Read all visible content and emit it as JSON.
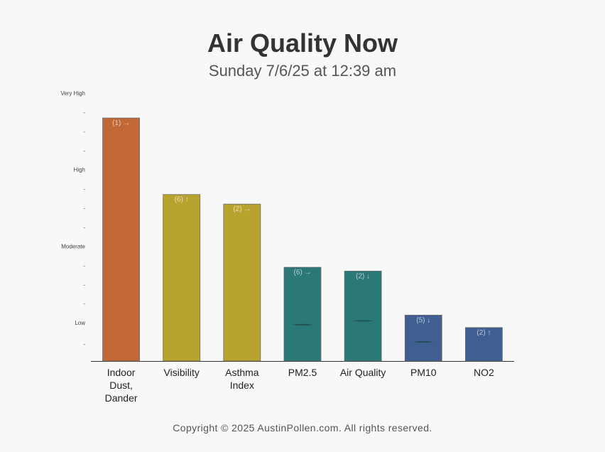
{
  "header": {
    "title": "Air Quality Now",
    "subtitle": "Sunday 7/6/25 at 12:39 am"
  },
  "footer": {
    "copyright": "Copyright © 2025 AustinPollen.com.  All rights reserved."
  },
  "chart_data": {
    "type": "bar",
    "title": "Air Quality Now",
    "subtitle": "Sunday 7/6/25 at 12:39 am",
    "xlabel": "",
    "ylabel": "",
    "ylim": [
      0,
      14
    ],
    "y_ticks": [
      {
        "value": 0.9,
        "label": "-"
      },
      {
        "value": 2,
        "label": "Low"
      },
      {
        "value": 3,
        "label": "-"
      },
      {
        "value": 4,
        "label": "-"
      },
      {
        "value": 5,
        "label": "-"
      },
      {
        "value": 6,
        "label": "Moderate"
      },
      {
        "value": 7,
        "label": "-"
      },
      {
        "value": 8,
        "label": "-"
      },
      {
        "value": 9,
        "label": "-"
      },
      {
        "value": 10,
        "label": "High"
      },
      {
        "value": 11,
        "label": "-"
      },
      {
        "value": 12,
        "label": "-"
      },
      {
        "value": 13,
        "label": "-"
      },
      {
        "value": 14,
        "label": "Very High"
      }
    ],
    "categories": [
      {
        "lines": [
          "Indoor",
          "Dust,",
          "Dander"
        ]
      },
      {
        "lines": [
          "Visibility"
        ]
      },
      {
        "lines": [
          "Asthma",
          "Index"
        ]
      },
      {
        "lines": [
          "PM2.5"
        ]
      },
      {
        "lines": [
          "Air Quality"
        ]
      },
      {
        "lines": [
          "PM10"
        ]
      },
      {
        "lines": [
          "NO2"
        ]
      }
    ],
    "values": [
      12.7,
      8.7,
      8.2,
      4.9,
      4.7,
      2.4,
      1.75
    ],
    "bar_labels": [
      "(1) →",
      "(6) ↑",
      "(2) →",
      "(6) →",
      "(2) ↓",
      "(5) ↓",
      "(2) ↑"
    ],
    "markers": [
      null,
      null,
      null,
      1.9,
      2.1,
      1.0,
      null
    ],
    "colors": [
      "#c26836",
      "#b8a32e",
      "#b8a32e",
      "#2a7978",
      "#2a7978",
      "#3f5f92",
      "#3f5f92"
    ],
    "grid": false,
    "legend": "none"
  }
}
